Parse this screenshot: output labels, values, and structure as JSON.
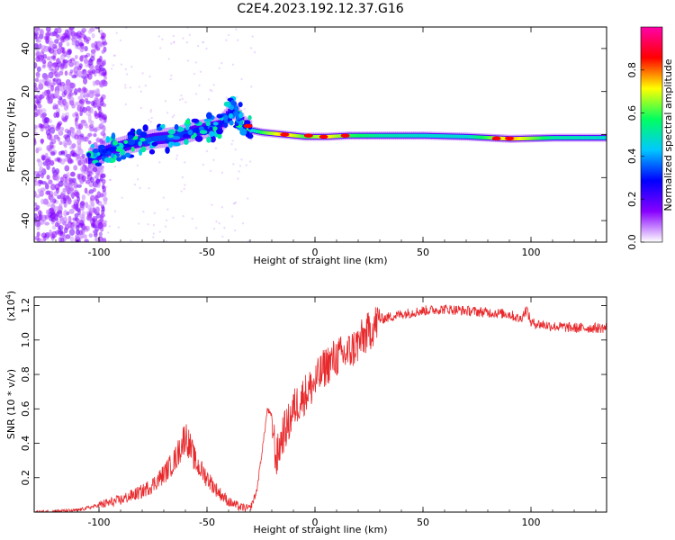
{
  "title": "C2E4.2023.192.12.37.G16",
  "chart_data": [
    {
      "type": "heatmap",
      "xlabel": "Height of straight line (km)",
      "ylabel": "Frequency (Hz)",
      "xlim": [
        -130,
        135
      ],
      "ylim": [
        -50,
        50
      ],
      "xticks": [
        "-100",
        "-50",
        "0",
        "50",
        "100"
      ],
      "yticks": [
        "-40",
        "-20",
        "0",
        "20",
        "40"
      ],
      "colorbar": {
        "label": "Normalized spectral amplitude",
        "range": [
          0.0,
          1.0
        ],
        "ticks": [
          "0.0",
          "0.2",
          "0.4",
          "0.6",
          "0.8"
        ],
        "colors": [
          "#ffffff",
          "#8800ff",
          "#0000ff",
          "#00c8ff",
          "#00ff60",
          "#ffff00",
          "#ff0000",
          "#ff00aa"
        ]
      },
      "ridge": {
        "x": [
          -105,
          -95,
          -85,
          -75,
          -65,
          -55,
          -45,
          -38,
          -33,
          -30,
          -25,
          -15,
          -5,
          5,
          15,
          30,
          50,
          70,
          90,
          110,
          135
        ],
        "freq": [
          -11,
          -7,
          -4,
          -2,
          -1,
          2,
          4,
          12,
          4,
          2,
          1,
          0,
          -1,
          -1,
          -0.5,
          -0.5,
          -0.5,
          -1,
          -2,
          -1.5,
          -1.5
        ],
        "amplitude": [
          0.3,
          0.35,
          0.35,
          0.4,
          0.4,
          0.35,
          0.35,
          0.35,
          0.85,
          0.5,
          0.7,
          0.9,
          0.7,
          0.85,
          0.7,
          0.6,
          0.55,
          0.55,
          0.9,
          0.6,
          0.55
        ]
      }
    },
    {
      "type": "line",
      "xlabel": "Height of straight line (km)",
      "ylabel": "SNR (10 * v/v)",
      "yscale_label": "(x10",
      "yscale_exp": "4",
      "yscale_close": ")",
      "xlim": [
        -130,
        135
      ],
      "ylim": [
        0,
        1.25
      ],
      "xticks": [
        "-100",
        "-50",
        "0",
        "50",
        "100"
      ],
      "yticks": [
        "0.2",
        "0.4",
        "0.6",
        "0.8",
        "1.0",
        "1.2"
      ],
      "color": "#e8292c",
      "series": [
        {
          "x": [
            -130,
            -110,
            -100,
            -90,
            -80,
            -75,
            -70,
            -65,
            -62,
            -60,
            -57,
            -55,
            -50,
            -45,
            -40,
            -35,
            -30,
            -27,
            -24,
            -22,
            -20,
            -18,
            -15,
            -12,
            -10,
            -5,
            0,
            5,
            10,
            15,
            20,
            25,
            30,
            40,
            50,
            60,
            70,
            80,
            90,
            95,
            98,
            100,
            110,
            120,
            135
          ],
          "y": [
            0.0,
            0.01,
            0.04,
            0.07,
            0.12,
            0.16,
            0.22,
            0.3,
            0.38,
            0.45,
            0.35,
            0.28,
            0.2,
            0.12,
            0.06,
            0.03,
            0.02,
            0.12,
            0.4,
            0.6,
            0.55,
            0.3,
            0.45,
            0.52,
            0.6,
            0.68,
            0.75,
            0.85,
            0.9,
            0.92,
            0.98,
            1.05,
            1.12,
            1.15,
            1.17,
            1.18,
            1.17,
            1.16,
            1.15,
            1.12,
            1.18,
            1.1,
            1.08,
            1.07,
            1.07
          ]
        }
      ]
    }
  ]
}
